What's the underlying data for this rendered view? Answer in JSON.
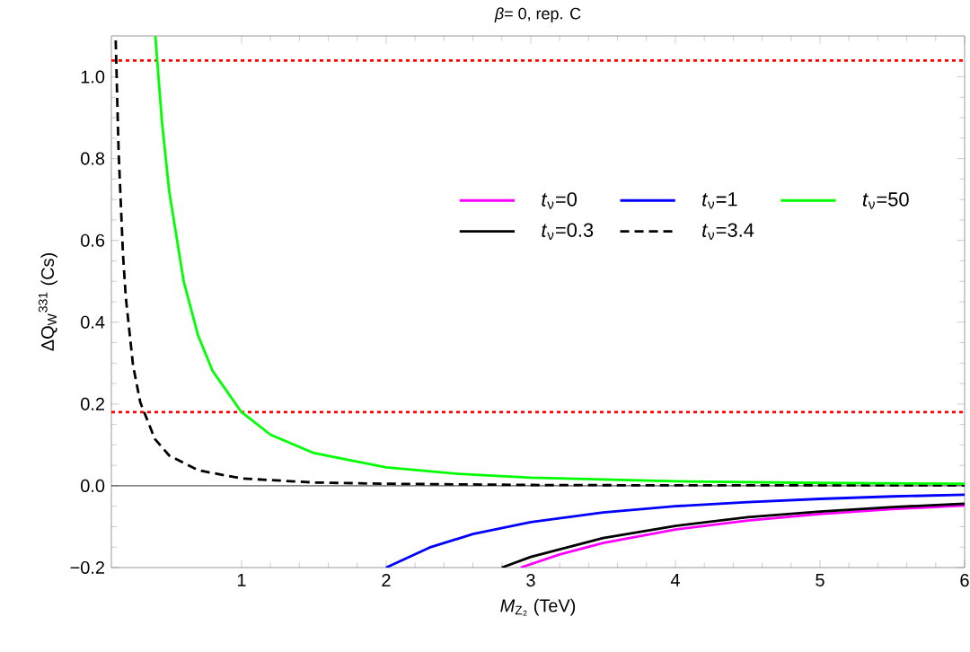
{
  "chart_data": {
    "type": "line",
    "title": "*β*= 0, rep. C",
    "xlabel": "*M*$_{Z₂}$ (TeV)",
    "ylabel": "ΔQ$_{W}$$^{331}$ (Cs)",
    "xlim": [
      0.1,
      6
    ],
    "ylim": [
      -0.2,
      1.1
    ],
    "xticks": [
      1,
      2,
      3,
      4,
      5,
      6
    ],
    "yticks": [
      {
        "value": -0.2,
        "label": "−0.2"
      },
      {
        "value": 0,
        "label": "0.0"
      },
      0.2,
      0.4,
      0.6,
      0.8,
      {
        "value": 1,
        "label": "1.0"
      }
    ],
    "grid": false,
    "legend": "right",
    "series": [
      {
        "name": "*t*$_{ν}$=0",
        "color": "#ff00ff",
        "x": [
          2.93,
          3.2,
          3.5,
          4,
          4.5,
          5,
          5.5,
          6
        ],
        "values": [
          -0.2,
          -0.168,
          -0.14,
          -0.107,
          -0.085,
          -0.069,
          -0.057,
          -0.048
        ]
      },
      {
        "name": "*t*$_{ν}$=0.3",
        "color": "#000000",
        "x": [
          2.8,
          3,
          3.5,
          4,
          4.5,
          5,
          5.5,
          6
        ],
        "values": [
          -0.2,
          -0.174,
          -0.128,
          -0.098,
          -0.077,
          -0.063,
          -0.052,
          -0.044
        ]
      },
      {
        "name": "*t*$_{ν}$=1",
        "color": "#0000ff",
        "x": [
          2,
          2.3,
          2.6,
          3,
          3.5,
          4,
          4.5,
          5,
          5.5,
          6
        ],
        "values": [
          -0.2,
          -0.151,
          -0.118,
          -0.089,
          -0.065,
          -0.05,
          -0.04,
          -0.032,
          -0.026,
          -0.022
        ]
      },
      {
        "name": "*t*$_{ν}$=3.4",
        "color": "#000000",
        "line_style": "dashed",
        "x": [
          0.13,
          0.15,
          0.18,
          0.2,
          0.25,
          0.3,
          0.4,
          0.5,
          0.7,
          1,
          1.5,
          2,
          3,
          4,
          6
        ],
        "values": [
          1.089,
          0.818,
          0.568,
          0.46,
          0.294,
          0.204,
          0.115,
          0.074,
          0.038,
          0.018,
          0.008,
          0.005,
          0.002,
          0.001,
          0.001
        ]
      },
      {
        "name": "*t*$_{ν}$=50",
        "color": "#00ff00",
        "x": [
          0.404,
          0.45,
          0.5,
          0.6,
          0.7,
          0.8,
          1,
          1.2,
          1.5,
          2,
          2.5,
          3,
          4,
          5,
          6
        ],
        "values": [
          1.1,
          0.889,
          0.72,
          0.5,
          0.367,
          0.281,
          0.18,
          0.125,
          0.08,
          0.045,
          0.029,
          0.02,
          0.011,
          0.007,
          0.005
        ]
      }
    ],
    "ref_lines": [
      {
        "axis": "y",
        "value": 1.04,
        "color": "#ff0000",
        "line_style": "dotted"
      },
      {
        "axis": "y",
        "value": 0.18,
        "color": "#ff0000",
        "line_style": "dotted"
      },
      {
        "axis": "y",
        "value": 0,
        "color": "#000000",
        "line_style": "solid"
      }
    ]
  }
}
